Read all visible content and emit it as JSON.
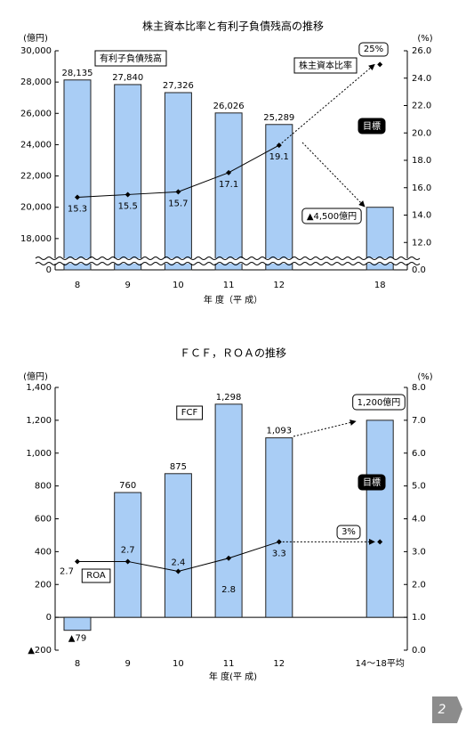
{
  "chart_data": [
    {
      "type": "bar",
      "title": "株主資本比率と有利子負債残高の推移",
      "ylabel": "(億円)",
      "y2label": "(%)",
      "xlabel": "年 度（平 成）",
      "categories": [
        "8",
        "9",
        "10",
        "11",
        "12",
        null,
        "18"
      ],
      "series": [
        {
          "name": "有利子負債残高",
          "type": "bar",
          "color": "#a9cdf5",
          "values": [
            28135,
            27840,
            27326,
            26026,
            25289,
            null,
            20000
          ],
          "value_labels": [
            "28,135",
            "27,840",
            "27,326",
            "26,026",
            "25,289",
            null,
            null
          ]
        },
        {
          "name": "株主資本比率",
          "type": "line",
          "axis": "y2",
          "color": "#000000",
          "values": [
            15.3,
            15.5,
            15.7,
            17.1,
            19.1,
            null,
            25
          ],
          "value_labels": [
            "15.3",
            "15.5",
            "15.7",
            "17.1",
            "19.1",
            null,
            "25%"
          ]
        }
      ],
      "ylim": [
        0,
        30000
      ],
      "ybreak": [
        0,
        16000
      ],
      "yticks": [
        0,
        {
          "value": 18000,
          "label": "18,000"
        },
        {
          "value": 20000,
          "label": "20,000"
        },
        {
          "value": 22000,
          "label": "22,000"
        },
        {
          "value": 24000,
          "label": "24,000"
        },
        {
          "value": 26000,
          "label": "26,000"
        },
        {
          "value": 28000,
          "label": "28,000"
        },
        {
          "value": 30000,
          "label": "30,000"
        }
      ],
      "y2lim": [
        0,
        26
      ],
      "y2break": [
        0,
        10
      ],
      "y2ticks": [
        {
          "value": 0,
          "label": "0.0"
        },
        {
          "value": 12,
          "label": "12.0"
        },
        {
          "value": 14,
          "label": "14.0"
        },
        {
          "value": 16,
          "label": "16.0"
        },
        {
          "value": 18,
          "label": "18.0"
        },
        {
          "value": 20,
          "label": "20.0"
        },
        {
          "value": 22,
          "label": "22.0"
        },
        {
          "value": 24,
          "label": "24.0"
        },
        {
          "value": 26,
          "label": "26.0"
        }
      ],
      "annotations": [
        "目標",
        "▲4,500億円"
      ]
    },
    {
      "type": "bar",
      "title": "ＦＣＦ，ＲＯＡの推移",
      "ylabel": "(億円)",
      "y2label": "(%)",
      "xlabel": "年 度(平 成)",
      "categories": [
        "8",
        "9",
        "10",
        "11",
        "12",
        null,
        "14〜18平均"
      ],
      "series": [
        {
          "name": "FCF",
          "type": "bar",
          "color": "#a9cdf5",
          "values": [
            -79,
            760,
            875,
            1298,
            1093,
            null,
            1200
          ],
          "value_labels": [
            "▲79",
            "760",
            "875",
            "1,298",
            "1,093",
            null,
            "1,200億円"
          ]
        },
        {
          "name": "ROA",
          "type": "line",
          "axis": "y2",
          "color": "#000000",
          "values": [
            2.7,
            2.7,
            2.4,
            2.8,
            3.3,
            null,
            3.3
          ],
          "value_labels": [
            "2.7",
            "2.7",
            "2.4",
            "2.8",
            "3.3",
            null,
            "3%"
          ]
        }
      ],
      "ylim": [
        -200,
        1400
      ],
      "yticks": [
        {
          "value": -200,
          "label": "▲200"
        },
        0,
        200,
        400,
        600,
        800,
        {
          "value": 1000,
          "label": "1,000"
        },
        {
          "value": 1200,
          "label": "1,200"
        },
        {
          "value": 1400,
          "label": "1,400"
        }
      ],
      "y2lim": [
        0,
        8
      ],
      "y2ticks": [
        {
          "value": 0,
          "label": "0.0"
        },
        {
          "value": 1,
          "label": "1.0"
        },
        {
          "value": 2,
          "label": "2.0"
        },
        {
          "value": 3,
          "label": "3.0"
        },
        {
          "value": 4,
          "label": "4.0"
        },
        {
          "value": 5,
          "label": "5.0"
        },
        {
          "value": 6,
          "label": "6.0"
        },
        {
          "value": 7,
          "label": "7.0"
        },
        {
          "value": 8,
          "label": "8.0"
        }
      ],
      "annotations": [
        "目標"
      ]
    }
  ],
  "page_number": "2"
}
